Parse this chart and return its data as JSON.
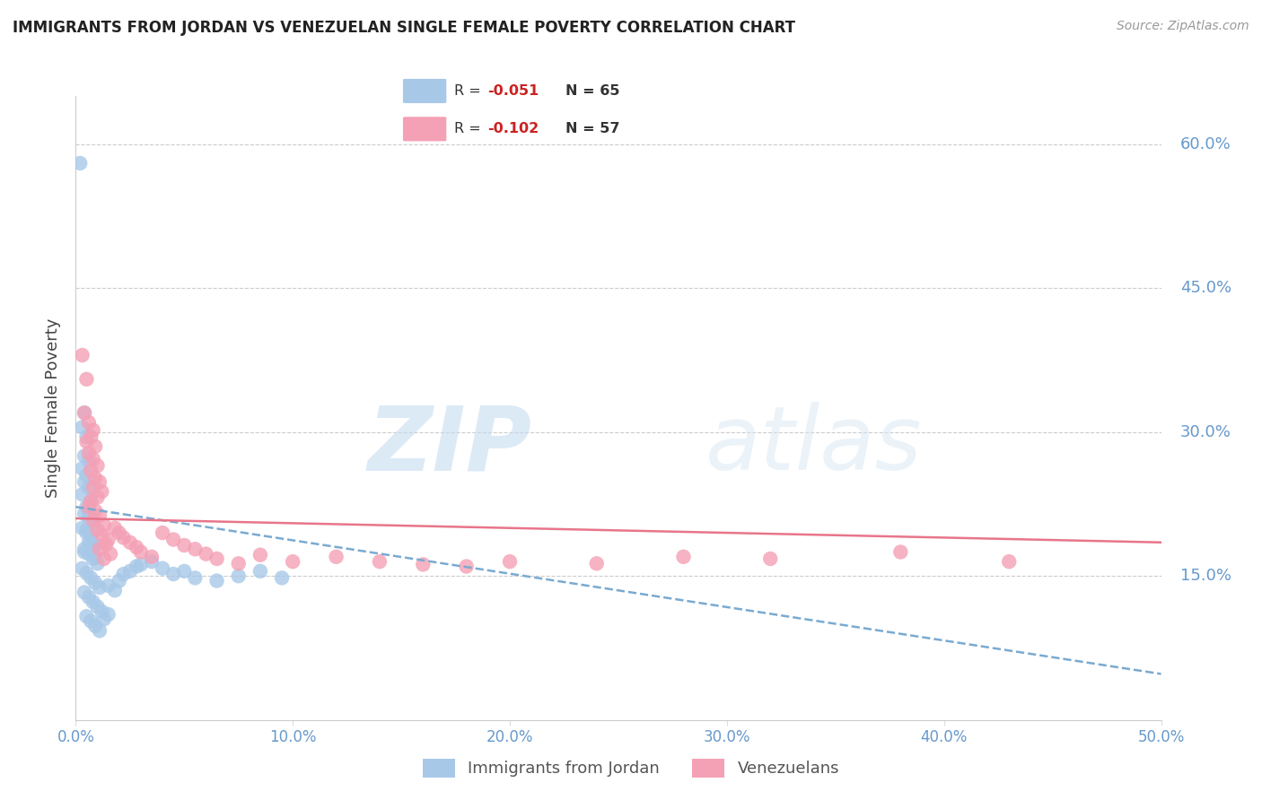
{
  "title": "IMMIGRANTS FROM JORDAN VS VENEZUELAN SINGLE FEMALE POVERTY CORRELATION CHART",
  "source": "Source: ZipAtlas.com",
  "ylabel": "Single Female Poverty",
  "legend_labels": [
    "Immigrants from Jordan",
    "Venezuelans"
  ],
  "jordan_color": "#a8c8e8",
  "venezuela_color": "#f4a0b5",
  "jordan_line_color": "#7aaad0",
  "venezuela_line_color": "#e8758a",
  "xlim": [
    0.0,
    0.5
  ],
  "ylim": [
    0.0,
    0.65
  ],
  "yticks": [
    0.15,
    0.3,
    0.45,
    0.6
  ],
  "xticks": [
    0.0,
    0.1,
    0.2,
    0.3,
    0.4,
    0.5
  ],
  "watermark_zip": "ZIP",
  "watermark_atlas": "atlas",
  "background_color": "#ffffff",
  "grid_color": "#cccccc",
  "tick_color": "#6699cc",
  "jordan_scatter": [
    [
      0.002,
      0.58
    ],
    [
      0.004,
      0.32
    ],
    [
      0.003,
      0.305
    ],
    [
      0.005,
      0.295
    ],
    [
      0.004,
      0.275
    ],
    [
      0.006,
      0.27
    ],
    [
      0.003,
      0.262
    ],
    [
      0.005,
      0.255
    ],
    [
      0.004,
      0.248
    ],
    [
      0.006,
      0.242
    ],
    [
      0.003,
      0.235
    ],
    [
      0.007,
      0.228
    ],
    [
      0.005,
      0.222
    ],
    [
      0.004,
      0.215
    ],
    [
      0.006,
      0.21
    ],
    [
      0.008,
      0.205
    ],
    [
      0.005,
      0.198
    ],
    [
      0.007,
      0.192
    ],
    [
      0.006,
      0.185
    ],
    [
      0.008,
      0.18
    ],
    [
      0.004,
      0.175
    ],
    [
      0.009,
      0.17
    ],
    [
      0.006,
      0.215
    ],
    [
      0.008,
      0.21
    ],
    [
      0.003,
      0.2
    ],
    [
      0.005,
      0.195
    ],
    [
      0.007,
      0.188
    ],
    [
      0.009,
      0.183
    ],
    [
      0.004,
      0.178
    ],
    [
      0.006,
      0.173
    ],
    [
      0.008,
      0.168
    ],
    [
      0.01,
      0.163
    ],
    [
      0.003,
      0.158
    ],
    [
      0.005,
      0.153
    ],
    [
      0.007,
      0.148
    ],
    [
      0.009,
      0.143
    ],
    [
      0.011,
      0.138
    ],
    [
      0.004,
      0.133
    ],
    [
      0.006,
      0.128
    ],
    [
      0.008,
      0.123
    ],
    [
      0.01,
      0.118
    ],
    [
      0.012,
      0.113
    ],
    [
      0.005,
      0.108
    ],
    [
      0.007,
      0.103
    ],
    [
      0.009,
      0.098
    ],
    [
      0.011,
      0.093
    ],
    [
      0.013,
      0.105
    ],
    [
      0.015,
      0.11
    ],
    [
      0.018,
      0.135
    ],
    [
      0.02,
      0.145
    ],
    [
      0.025,
      0.155
    ],
    [
      0.028,
      0.16
    ],
    [
      0.035,
      0.165
    ],
    [
      0.04,
      0.158
    ],
    [
      0.045,
      0.152
    ],
    [
      0.055,
      0.148
    ],
    [
      0.065,
      0.145
    ],
    [
      0.075,
      0.15
    ],
    [
      0.085,
      0.155
    ],
    [
      0.095,
      0.148
    ],
    [
      0.015,
      0.14
    ],
    [
      0.022,
      0.152
    ],
    [
      0.03,
      0.162
    ],
    [
      0.05,
      0.155
    ]
  ],
  "venezuela_scatter": [
    [
      0.003,
      0.38
    ],
    [
      0.005,
      0.355
    ],
    [
      0.004,
      0.32
    ],
    [
      0.006,
      0.31
    ],
    [
      0.008,
      0.302
    ],
    [
      0.007,
      0.295
    ],
    [
      0.005,
      0.29
    ],
    [
      0.009,
      0.285
    ],
    [
      0.006,
      0.278
    ],
    [
      0.008,
      0.272
    ],
    [
      0.01,
      0.265
    ],
    [
      0.007,
      0.26
    ],
    [
      0.009,
      0.252
    ],
    [
      0.011,
      0.248
    ],
    [
      0.008,
      0.242
    ],
    [
      0.012,
      0.238
    ],
    [
      0.01,
      0.232
    ],
    [
      0.007,
      0.228
    ],
    [
      0.006,
      0.222
    ],
    [
      0.009,
      0.218
    ],
    [
      0.011,
      0.213
    ],
    [
      0.008,
      0.208
    ],
    [
      0.013,
      0.203
    ],
    [
      0.01,
      0.198
    ],
    [
      0.012,
      0.193
    ],
    [
      0.015,
      0.188
    ],
    [
      0.014,
      0.183
    ],
    [
      0.011,
      0.178
    ],
    [
      0.016,
      0.173
    ],
    [
      0.013,
      0.168
    ],
    [
      0.018,
      0.2
    ],
    [
      0.02,
      0.195
    ],
    [
      0.022,
      0.19
    ],
    [
      0.025,
      0.185
    ],
    [
      0.028,
      0.18
    ],
    [
      0.03,
      0.175
    ],
    [
      0.035,
      0.17
    ],
    [
      0.04,
      0.195
    ],
    [
      0.045,
      0.188
    ],
    [
      0.05,
      0.182
    ],
    [
      0.055,
      0.178
    ],
    [
      0.06,
      0.173
    ],
    [
      0.065,
      0.168
    ],
    [
      0.075,
      0.163
    ],
    [
      0.085,
      0.172
    ],
    [
      0.1,
      0.165
    ],
    [
      0.12,
      0.17
    ],
    [
      0.14,
      0.165
    ],
    [
      0.16,
      0.162
    ],
    [
      0.18,
      0.16
    ],
    [
      0.2,
      0.165
    ],
    [
      0.24,
      0.163
    ],
    [
      0.28,
      0.17
    ],
    [
      0.32,
      0.168
    ],
    [
      0.38,
      0.175
    ],
    [
      0.43,
      0.165
    ]
  ]
}
